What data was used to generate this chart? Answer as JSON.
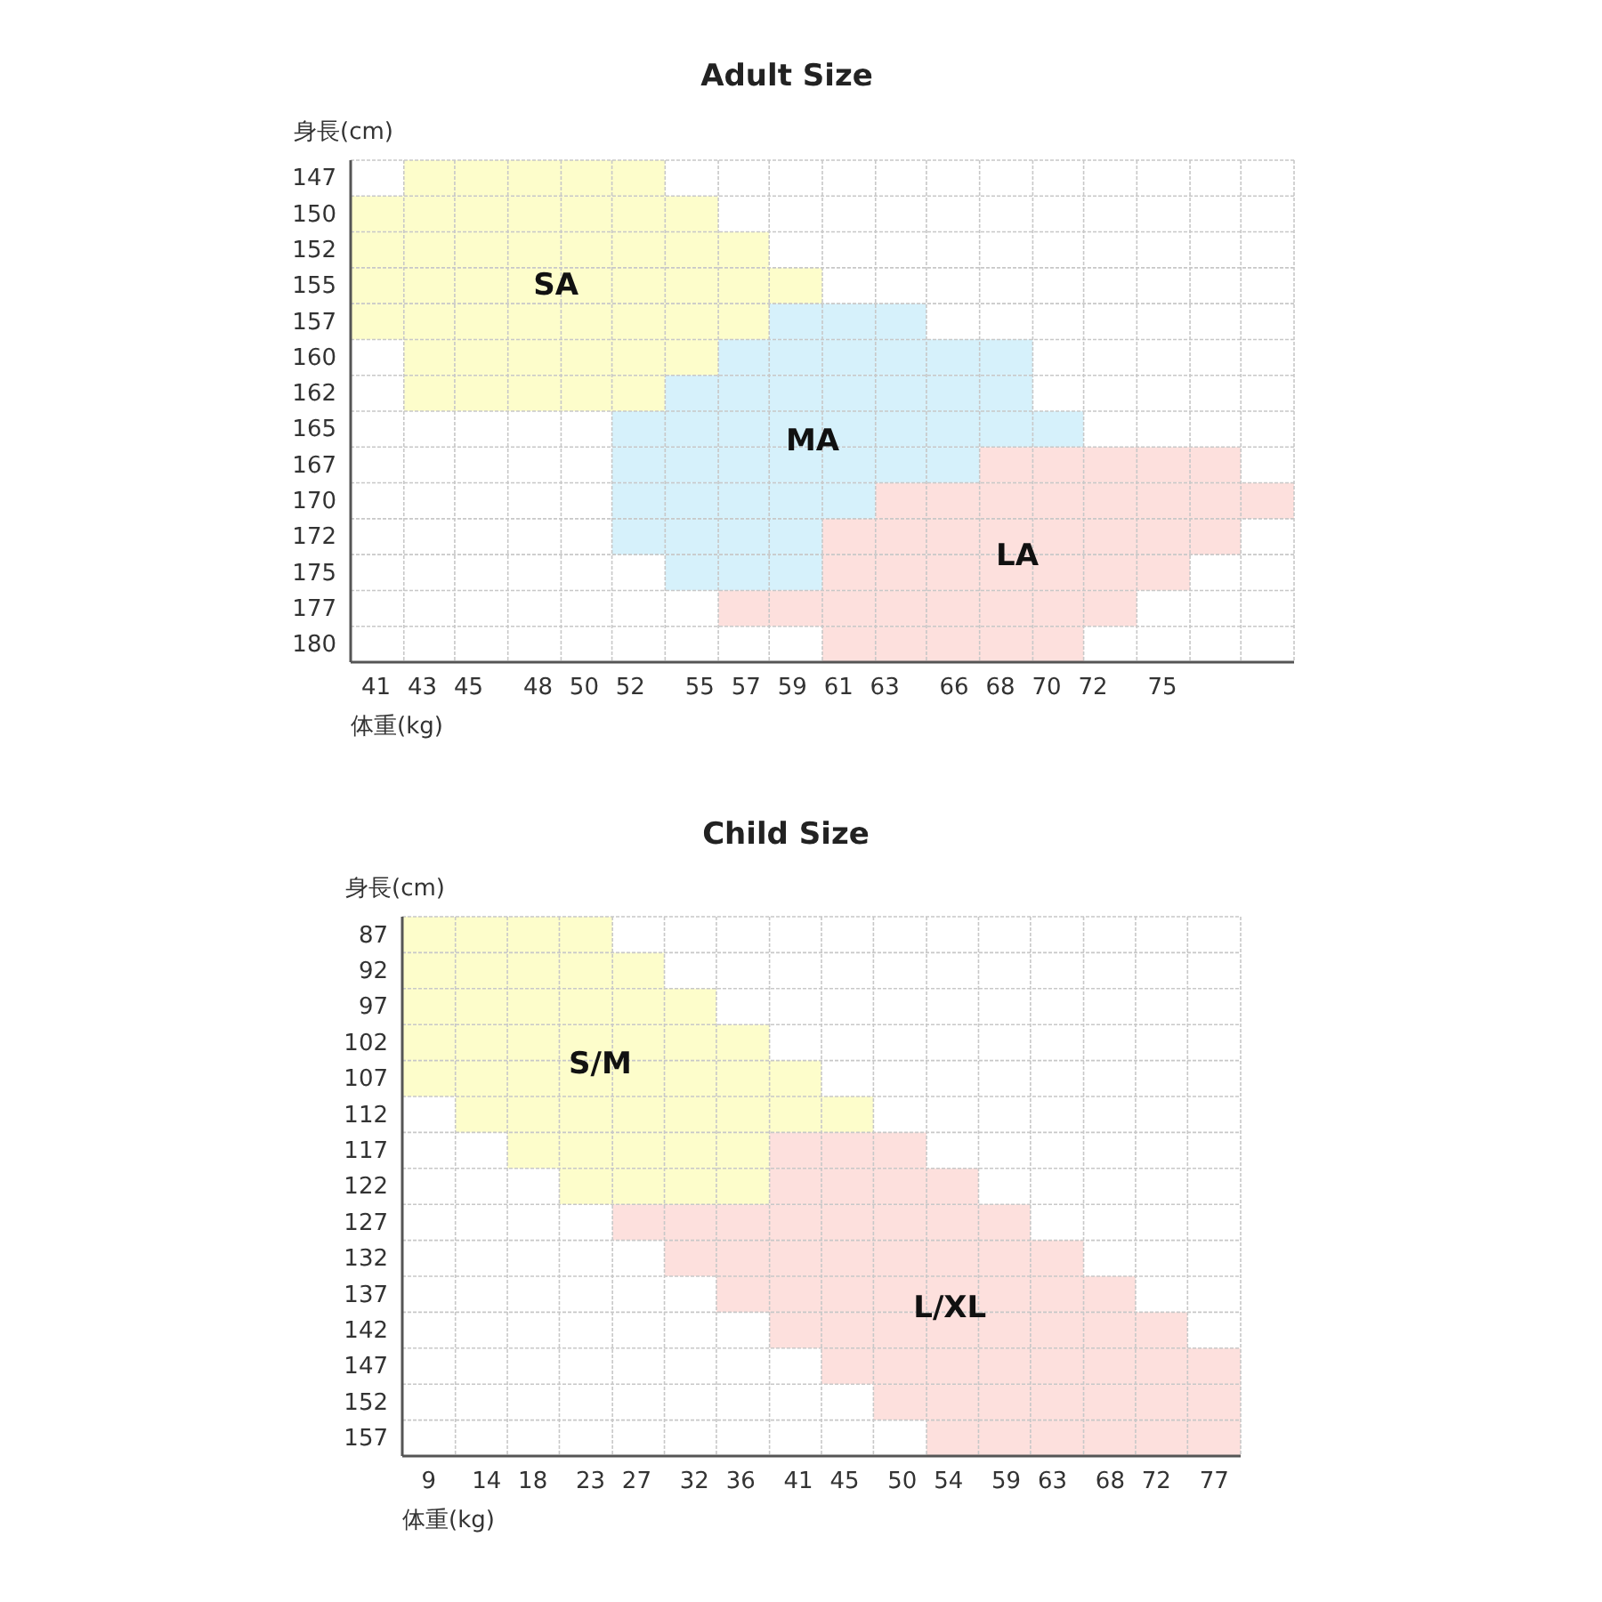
{
  "chart_data": [
    {
      "type": "bar",
      "orientation": "horizontal",
      "title": "Adult Size",
      "xlabel": "体重(kg)",
      "ylabel": "身長(cm)",
      "grid": true,
      "categories": [
        "147",
        "150",
        "152",
        "155",
        "157",
        "160",
        "162",
        "165",
        "167",
        "170",
        "172",
        "175",
        "177",
        "180"
      ],
      "xlim": [
        39.9,
        80.7
      ],
      "xticks": [
        41,
        43,
        45,
        48,
        50,
        52,
        55,
        57,
        59,
        61,
        63,
        66,
        68,
        70,
        72,
        75,
        {
          "value": 39.9,
          "label": null
        },
        {
          "value": 42.2,
          "label": null
        },
        {
          "value": 44.4,
          "label": null
        },
        {
          "value": 46.7,
          "label": null
        },
        {
          "value": 49.0,
          "label": null
        },
        {
          "value": 51.2,
          "label": null
        },
        {
          "value": 53.5,
          "label": null
        },
        {
          "value": 55.8,
          "label": null
        },
        {
          "value": 58.0,
          "label": null
        },
        {
          "value": 60.3,
          "label": null
        },
        {
          "value": 62.6,
          "label": null
        },
        {
          "value": 64.8,
          "label": null
        },
        {
          "value": 67.1,
          "label": null
        },
        {
          "value": 69.4,
          "label": null
        },
        {
          "value": 71.6,
          "label": null
        },
        {
          "value": 73.9,
          "label": null
        },
        {
          "value": 76.2,
          "label": null
        },
        {
          "value": 78.4,
          "label": null
        },
        {
          "value": 80.7,
          "label": null
        }
      ],
      "series": [
        {
          "name": "SA",
          "color": "#fdfdcb",
          "base": [
            42.2,
            39.9,
            39.9,
            39.9,
            39.9,
            42.2,
            42.2,
            null,
            null,
            null,
            null,
            null,
            null,
            null
          ],
          "values": [
            11.3,
            15.9,
            18.1,
            20.4,
            18.1,
            13.6,
            11.3,
            null,
            null,
            null,
            null,
            null,
            null,
            null
          ]
        },
        {
          "name": "MA",
          "color": "#d6f1fb",
          "base": [
            null,
            null,
            null,
            null,
            58.0,
            55.8,
            53.5,
            51.2,
            51.2,
            51.2,
            51.2,
            53.5,
            null,
            null
          ],
          "values": [
            null,
            null,
            null,
            null,
            6.8,
            13.6,
            15.9,
            20.4,
            15.9,
            11.4,
            9.1,
            6.8,
            null,
            null
          ]
        },
        {
          "name": "LA",
          "color": "#fde0dd",
          "base": [
            null,
            null,
            null,
            null,
            null,
            null,
            null,
            null,
            67.1,
            62.6,
            60.3,
            60.3,
            55.8,
            60.3
          ],
          "values": [
            null,
            null,
            null,
            null,
            null,
            null,
            null,
            null,
            11.3,
            18.1,
            18.1,
            15.9,
            18.1,
            11.3
          ]
        }
      ]
    },
    {
      "type": "bar",
      "orientation": "horizontal",
      "title": "Child Size",
      "xlabel": "体重(kg)",
      "ylabel": "身長(cm)",
      "grid": true,
      "categories": [
        "87",
        "92",
        "97",
        "102",
        "107",
        "112",
        "117",
        "122",
        "127",
        "132",
        "137",
        "142",
        "147",
        "152",
        "157"
      ],
      "xlim": [
        6.7,
        79.3
      ],
      "xticks": [
        9,
        14,
        18,
        23,
        27,
        32,
        36,
        41,
        45,
        50,
        54,
        59,
        63,
        68,
        72,
        77,
        {
          "value": 6.7,
          "label": null
        },
        {
          "value": 11.3,
          "label": null
        },
        {
          "value": 15.8,
          "label": null
        },
        {
          "value": 20.3,
          "label": null
        },
        {
          "value": 24.9,
          "label": null
        },
        {
          "value": 29.4,
          "label": null
        },
        {
          "value": 33.9,
          "label": null
        },
        {
          "value": 38.5,
          "label": null
        },
        {
          "value": 43.0,
          "label": null
        },
        {
          "value": 47.5,
          "label": null
        },
        {
          "value": 52.1,
          "label": null
        },
        {
          "value": 56.6,
          "label": null
        },
        {
          "value": 61.1,
          "label": null
        },
        {
          "value": 65.7,
          "label": null
        },
        {
          "value": 70.2,
          "label": null
        },
        {
          "value": 74.7,
          "label": null
        },
        {
          "value": 79.3,
          "label": null
        }
      ],
      "series": [
        {
          "name": "S/M",
          "color": "#fdfdcb",
          "base": [
            6.7,
            6.7,
            6.7,
            6.7,
            6.7,
            11.3,
            15.8,
            20.3,
            null,
            null,
            null,
            null,
            null,
            null,
            null
          ],
          "values": [
            18.2,
            22.7,
            27.2,
            31.8,
            36.3,
            36.2,
            22.7,
            18.2,
            null,
            null,
            null,
            null,
            null,
            null,
            null
          ]
        },
        {
          "name": "L/XL",
          "color": "#fde0dd",
          "base": [
            null,
            null,
            null,
            null,
            null,
            null,
            38.5,
            38.5,
            24.9,
            29.4,
            33.9,
            38.5,
            43.0,
            47.5,
            52.1
          ],
          "values": [
            null,
            null,
            null,
            null,
            null,
            null,
            13.6,
            18.1,
            36.2,
            36.3,
            36.3,
            36.2,
            36.3,
            31.8,
            27.2
          ]
        }
      ]
    }
  ]
}
